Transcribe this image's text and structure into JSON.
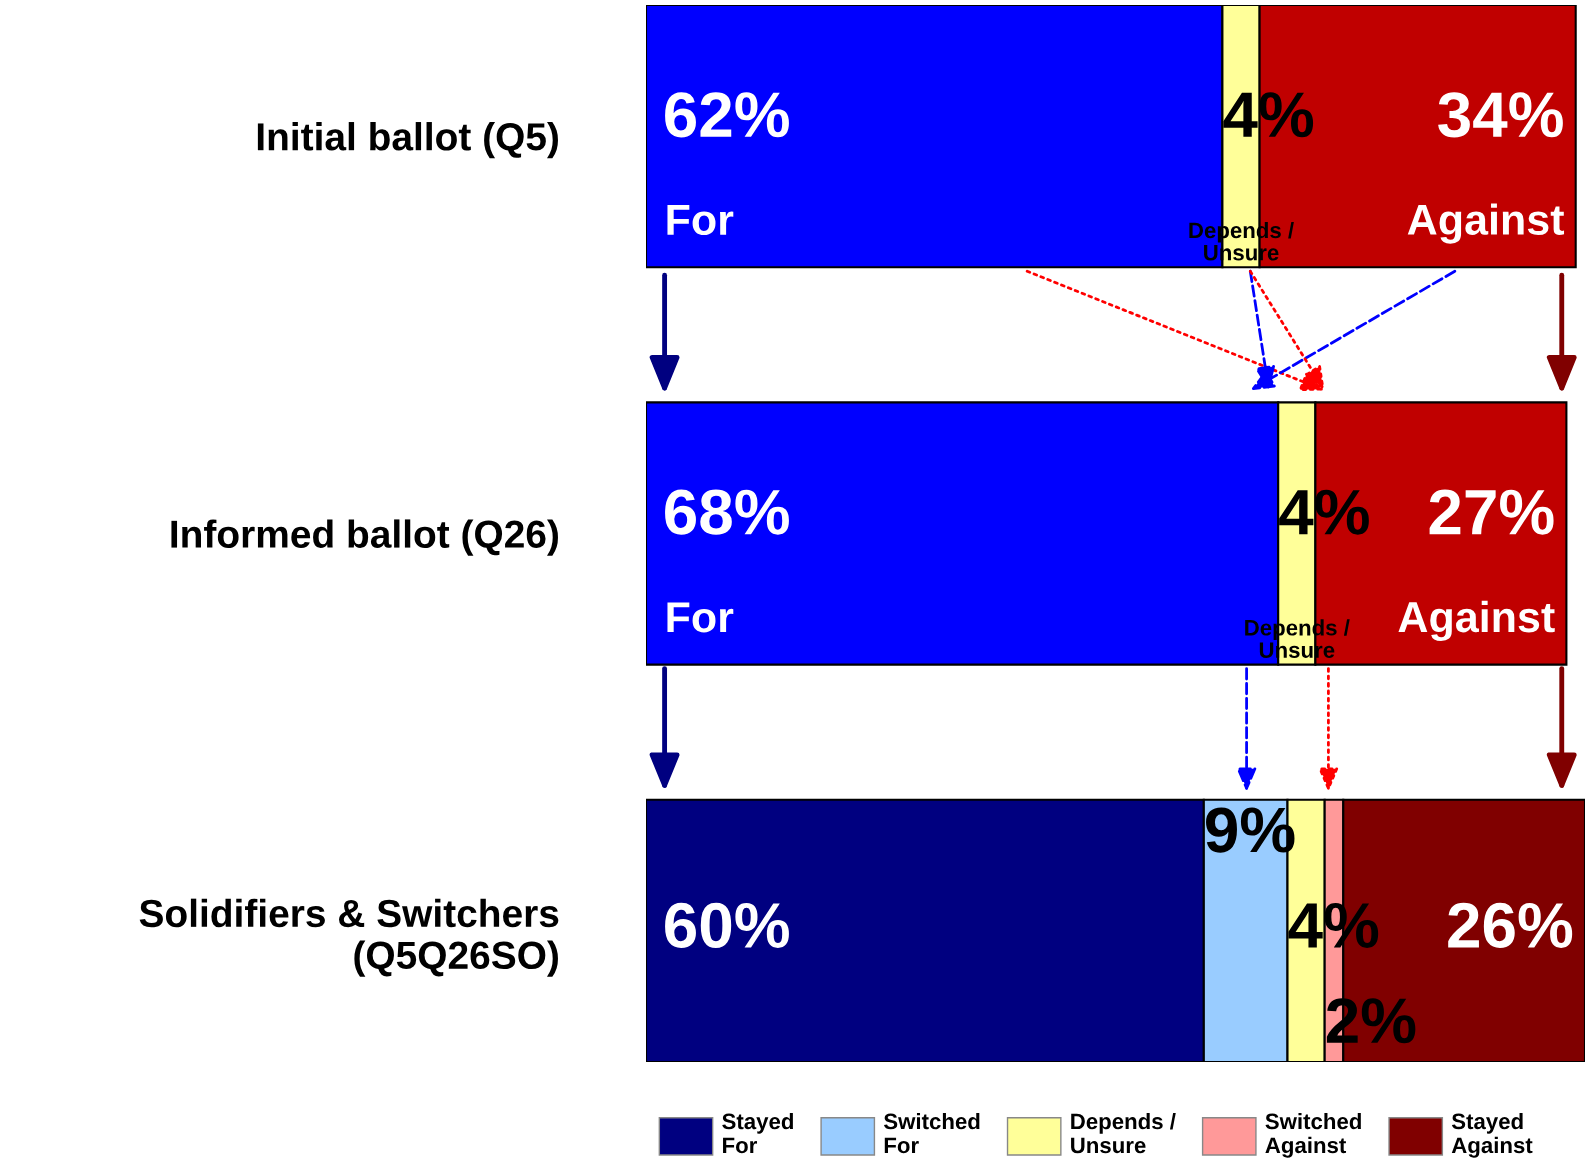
{
  "chart_data": {
    "type": "bar",
    "orientation": "horizontal",
    "stacked": true,
    "xlim": [
      0,
      101
    ],
    "tick_labels": "y",
    "legend": "bottom",
    "categories": [
      "Initial ballot (Q5)",
      "Informed ballot (Q26)",
      "Solidifiers & Switchers\n(Q5Q26SO)"
    ],
    "series": [
      {
        "name": "Stayed\nFor",
        "color": "#000080",
        "colors": [
          "#0000ff",
          "#0000ff",
          "#000080"
        ],
        "values": [
          62,
          68,
          60
        ],
        "value_labels": [
          "62%",
          "68%",
          "60%"
        ]
      },
      {
        "name": "Switched\nFor",
        "color": "#99ccff",
        "values": [
          null,
          null,
          9
        ],
        "value_labels": [
          null,
          null,
          "9%"
        ]
      },
      {
        "name": "Depends /\nUnsure",
        "color": "#ffff99",
        "values": [
          4,
          4,
          4
        ],
        "value_labels": [
          "4%",
          "4%",
          "4%"
        ]
      },
      {
        "name": "Switched\nAgainst",
        "color": "#ff9999",
        "values": [
          null,
          null,
          2
        ],
        "value_labels": [
          null,
          null,
          "2%"
        ]
      },
      {
        "name": "Stayed\nAgainst",
        "color": "#800000",
        "colors": [
          "#c00000",
          "#c00000",
          "#800000"
        ],
        "values": [
          34,
          27,
          26
        ],
        "value_labels": [
          "34%",
          "27%",
          "26%"
        ]
      }
    ],
    "annotations": [
      "For",
      "Depends /\nUnsure",
      "Against",
      "For",
      "Depends /\nUnsure",
      "Against"
    ]
  }
}
